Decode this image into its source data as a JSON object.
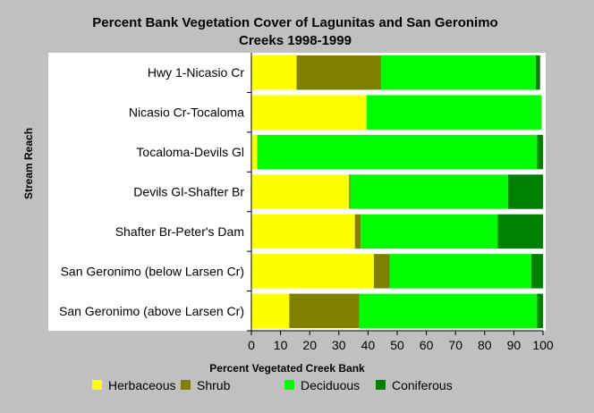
{
  "chart_data": {
    "type": "bar",
    "orientation": "horizontal",
    "stacked": true,
    "title_line1": "Percent Bank Vegetation Cover of Lagunitas and San Geronimo",
    "title_line2": "Creeks 1998-1999",
    "xlabel": "Percent Vegetated Creek Bank",
    "ylabel": "Stream Reach",
    "xlim": [
      0,
      100
    ],
    "xticks": [
      0,
      10,
      20,
      30,
      40,
      50,
      60,
      70,
      80,
      90,
      100
    ],
    "legend_position": "bottom",
    "grid": false,
    "categories": [
      "Hwy 1-Nicasio Cr",
      "Nicasio Cr-Tocaloma",
      "Tocaloma-Devils Gl",
      "Devils Gl-Shafter Br",
      "Shafter Br-Peter's Dam",
      "San Geronimo (below Larsen Cr)",
      "San Geronimo (above Larsen Cr)"
    ],
    "series": [
      {
        "name": "Herbaceous",
        "color": "#ffff00",
        "values": [
          15.5,
          39.5,
          2,
          33.5,
          35.5,
          42,
          13
        ]
      },
      {
        "name": "Shrub",
        "color": "#808000",
        "values": [
          29,
          0,
          0,
          0.5,
          2,
          5.5,
          24
        ]
      },
      {
        "name": "Deciduous",
        "color": "#00ff00",
        "values": [
          53,
          60,
          96,
          54,
          47,
          48.5,
          61
        ]
      },
      {
        "name": "Coniferous",
        "color": "#008000",
        "values": [
          1.5,
          0,
          2,
          12,
          15.5,
          4,
          2
        ]
      }
    ]
  }
}
